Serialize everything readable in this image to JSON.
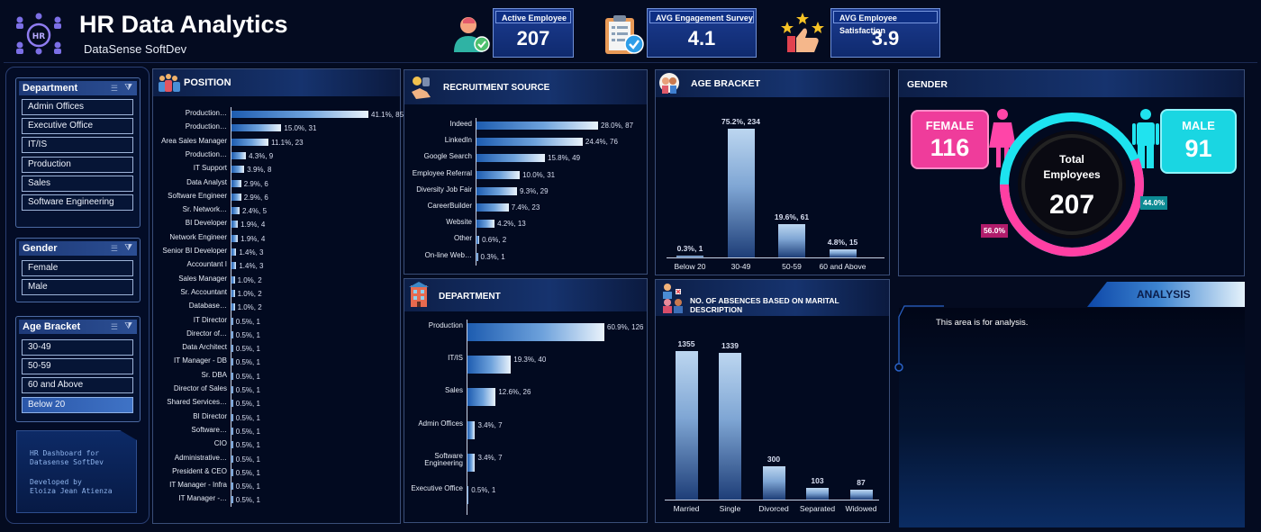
{
  "header": {
    "title": "HR Data Analytics",
    "subtitle": "DataSense SoftDev",
    "logo_icon": "hr-network-icon",
    "logo_text": "HR"
  },
  "kpis": [
    {
      "label": "Active Employee",
      "value": "207",
      "icon": "employee-check-icon"
    },
    {
      "label": "AVG Engagement Survey",
      "value": "4.1",
      "icon": "clipboard-check-icon"
    },
    {
      "label": "AVG Employee Satisfaction",
      "value": "3.9",
      "icon": "thumbs-up-stars-icon"
    }
  ],
  "slicers": [
    {
      "title": "Department",
      "items": [
        "Admin Offices",
        "Executive Office",
        "IT/IS",
        "Production",
        "Sales",
        "Software Engineering"
      ]
    },
    {
      "title": "Gender",
      "items": [
        "Female",
        "Male"
      ]
    },
    {
      "title": "Age Bracket",
      "items": [
        "30-49",
        "50-59",
        "60 and Above",
        "Below 20"
      ],
      "selected": "Below 20"
    }
  ],
  "credit": {
    "line1": "HR Dashboard for",
    "line2": "Datasense SoftDev",
    "line3": "Developed by",
    "line4": "Eloiza Jean Atienza"
  },
  "position": {
    "title": "POSITION",
    "items": [
      {
        "label": "Production…",
        "value": 85,
        "text": "41.1%, 85"
      },
      {
        "label": "Production…",
        "value": 31,
        "text": "15.0%, 31"
      },
      {
        "label": "Area Sales Manager",
        "value": 23,
        "text": "11.1%, 23"
      },
      {
        "label": "Production…",
        "value": 9,
        "text": "4.3%, 9"
      },
      {
        "label": "IT Support",
        "value": 8,
        "text": "3.9%, 8"
      },
      {
        "label": "Data Analyst",
        "value": 6,
        "text": "2.9%, 6"
      },
      {
        "label": "Software Engineer",
        "value": 6,
        "text": "2.9%, 6"
      },
      {
        "label": "Sr. Network…",
        "value": 5,
        "text": "2.4%, 5"
      },
      {
        "label": "BI Developer",
        "value": 4,
        "text": "1.9%, 4"
      },
      {
        "label": "Network Engineer",
        "value": 4,
        "text": "1.9%, 4"
      },
      {
        "label": "Senior BI Developer",
        "value": 3,
        "text": "1.4%, 3"
      },
      {
        "label": "Accountant I",
        "value": 3,
        "text": "1.4%, 3"
      },
      {
        "label": "Sales Manager",
        "value": 2,
        "text": "1.0%, 2"
      },
      {
        "label": "Sr. Accountant",
        "value": 2,
        "text": "1.0%, 2"
      },
      {
        "label": "Database…",
        "value": 2,
        "text": "1.0%, 2"
      },
      {
        "label": "IT Director",
        "value": 1,
        "text": "0.5%, 1"
      },
      {
        "label": "Director of…",
        "value": 1,
        "text": "0.5%, 1"
      },
      {
        "label": "Data Architect",
        "value": 1,
        "text": "0.5%, 1"
      },
      {
        "label": "IT Manager - DB",
        "value": 1,
        "text": "0.5%, 1"
      },
      {
        "label": "Sr. DBA",
        "value": 1,
        "text": "0.5%, 1"
      },
      {
        "label": "Director of Sales",
        "value": 1,
        "text": "0.5%, 1"
      },
      {
        "label": "Shared Services…",
        "value": 1,
        "text": "0.5%, 1"
      },
      {
        "label": "BI Director",
        "value": 1,
        "text": "0.5%, 1"
      },
      {
        "label": "Software…",
        "value": 1,
        "text": "0.5%, 1"
      },
      {
        "label": "CIO",
        "value": 1,
        "text": "0.5%, 1"
      },
      {
        "label": "Administrative…",
        "value": 1,
        "text": "0.5%, 1"
      },
      {
        "label": "President & CEO",
        "value": 1,
        "text": "0.5%, 1"
      },
      {
        "label": "IT Manager - Infra",
        "value": 1,
        "text": "0.5%, 1"
      },
      {
        "label": "IT Manager -…",
        "value": 1,
        "text": "0.5%, 1"
      }
    ]
  },
  "recruitment": {
    "title": "RECRUITMENT SOURCE",
    "items": [
      {
        "label": "Indeed",
        "value": 87,
        "text": "28.0%, 87"
      },
      {
        "label": "LinkedIn",
        "value": 76,
        "text": "24.4%, 76"
      },
      {
        "label": "Google Search",
        "value": 49,
        "text": "15.8%, 49"
      },
      {
        "label": "Employee Referral",
        "value": 31,
        "text": "10.0%, 31"
      },
      {
        "label": "Diversity Job Fair",
        "value": 29,
        "text": "9.3%, 29"
      },
      {
        "label": "CareerBuilder",
        "value": 23,
        "text": "7.4%, 23"
      },
      {
        "label": "Website",
        "value": 13,
        "text": "4.2%, 13"
      },
      {
        "label": "Other",
        "value": 2,
        "text": "0.6%, 2"
      },
      {
        "label": "On-line Web…",
        "value": 1,
        "text": "0.3%, 1"
      }
    ]
  },
  "department": {
    "title": "DEPARTMENT",
    "items": [
      {
        "label": "Production",
        "value": 126,
        "text": "60.9%, 126"
      },
      {
        "label": "IT/IS",
        "value": 40,
        "text": "19.3%, 40"
      },
      {
        "label": "Sales",
        "value": 26,
        "text": "12.6%, 26"
      },
      {
        "label": "Admin Offices",
        "value": 7,
        "text": "3.4%, 7"
      },
      {
        "label": "Software Engineering",
        "value": 7,
        "text": "3.4%, 7"
      },
      {
        "label": "Executive Office",
        "value": 1,
        "text": "0.5%, 1"
      }
    ]
  },
  "age": {
    "title": "AGE BRACKET",
    "items": [
      {
        "label": "Below 20",
        "value": 1,
        "text": "0.3%, 1"
      },
      {
        "label": "30-49",
        "value": 234,
        "text": "75.2%, 234"
      },
      {
        "label": "50-59",
        "value": 61,
        "text": "19.6%, 61"
      },
      {
        "label": "60 and Above",
        "value": 15,
        "text": "4.8%, 15"
      }
    ]
  },
  "absences": {
    "title": "NO. OF ABSENCES BASED ON MARITAL DESCRIPTION",
    "items": [
      {
        "label": "Married",
        "value": 1355,
        "text": "1355"
      },
      {
        "label": "Single",
        "value": 1339,
        "text": "1339"
      },
      {
        "label": "Divorced",
        "value": 300,
        "text": "300"
      },
      {
        "label": "Separated",
        "value": 103,
        "text": "103"
      },
      {
        "label": "Widowed",
        "value": 87,
        "text": "87"
      }
    ]
  },
  "gender": {
    "title": "GENDER",
    "female_label": "FEMALE",
    "female_value": "116",
    "male_label": "MALE",
    "male_value": "91",
    "total_label1": "Total",
    "total_label2": "Employees",
    "total_value": "207",
    "female_pct": "56.0%",
    "male_pct": "44.0%",
    "female_fraction": 0.56,
    "colors": {
      "female": "#ff3fa3",
      "male": "#1de3f0"
    }
  },
  "analysis": {
    "title": "ANALYSIS",
    "text": "This area is for analysis."
  }
}
